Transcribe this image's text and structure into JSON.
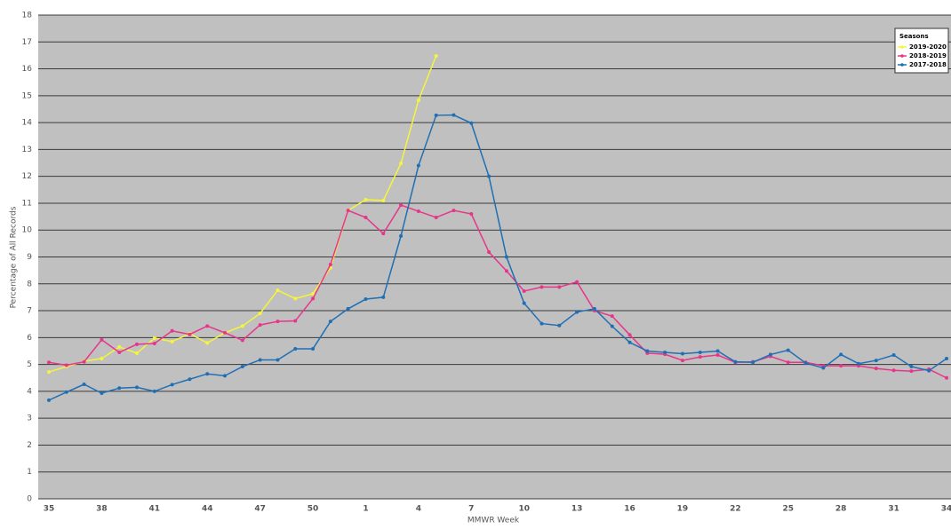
{
  "chart_data": {
    "type": "line",
    "x_label": "MMWR Week",
    "y_label": "Percentage of All Records",
    "legend_title": "Seasons",
    "legend": "upper right",
    "grid": true,
    "categories": [
      "35",
      null,
      null,
      "38",
      null,
      null,
      "41",
      null,
      null,
      "44",
      null,
      null,
      "47",
      null,
      null,
      "50",
      null,
      null,
      "1",
      null,
      null,
      "4",
      null,
      null,
      "7",
      null,
      null,
      "10",
      null,
      null,
      "13",
      null,
      null,
      "16",
      null,
      null,
      "19",
      null,
      null,
      "22",
      null,
      null,
      "25",
      null,
      null,
      "28",
      null,
      null,
      "31",
      null,
      null,
      "34"
    ],
    "ylim": [
      0,
      18
    ],
    "yticks": [
      0,
      1,
      2,
      3,
      4,
      5,
      6,
      7,
      8,
      9,
      10,
      11,
      12,
      13,
      14,
      15,
      16,
      17,
      18
    ],
    "series": [
      {
        "name": "2019-2020",
        "color": "#f5f53a",
        "values": [
          4.72,
          4.92,
          5.12,
          5.22,
          5.65,
          5.42,
          5.98,
          5.85,
          6.15,
          5.8,
          6.18,
          6.43,
          6.9,
          7.76,
          7.45,
          7.63,
          8.6,
          10.73,
          11.13,
          11.1,
          12.48,
          14.83,
          16.48,
          null,
          null,
          null,
          null,
          null,
          null,
          null,
          null,
          null,
          null,
          null,
          null,
          null,
          null,
          null,
          null,
          null,
          null,
          null,
          null,
          null,
          null,
          null,
          null,
          null,
          null,
          null,
          null,
          null
        ]
      },
      {
        "name": "2018-2019",
        "color": "#e8358a",
        "values": [
          5.08,
          4.97,
          5.1,
          5.92,
          5.45,
          5.75,
          5.78,
          6.25,
          6.12,
          6.43,
          6.18,
          5.9,
          6.47,
          6.6,
          6.62,
          7.45,
          8.72,
          10.73,
          10.47,
          9.87,
          10.93,
          10.7,
          10.47,
          10.73,
          10.6,
          9.18,
          8.48,
          7.73,
          7.88,
          7.88,
          8.07,
          7.0,
          6.8,
          6.1,
          5.42,
          5.38,
          5.15,
          5.28,
          5.35,
          5.08,
          5.1,
          5.3,
          5.08,
          5.08,
          4.95,
          4.95,
          4.95,
          4.85,
          4.78,
          4.75,
          4.82,
          4.5
        ]
      },
      {
        "name": "2017-2018",
        "color": "#1f6fb5",
        "values": [
          3.67,
          3.97,
          4.26,
          3.93,
          4.12,
          4.15,
          4.0,
          4.25,
          4.45,
          4.65,
          4.58,
          4.92,
          5.17,
          5.17,
          5.58,
          5.58,
          6.6,
          7.07,
          7.43,
          7.5,
          9.78,
          12.4,
          14.27,
          14.28,
          13.98,
          12.0,
          9.0,
          7.28,
          6.52,
          6.45,
          6.95,
          7.07,
          6.42,
          5.82,
          5.5,
          5.45,
          5.4,
          5.45,
          5.5,
          5.1,
          5.08,
          5.37,
          5.53,
          5.05,
          4.87,
          5.37,
          5.03,
          5.15,
          5.35,
          4.92,
          4.77,
          5.22
        ]
      }
    ]
  }
}
